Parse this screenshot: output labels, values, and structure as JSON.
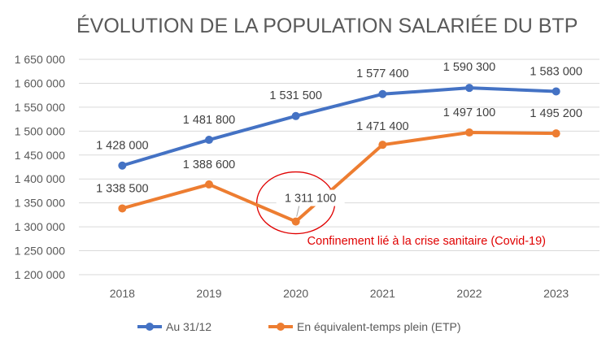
{
  "chart_data": {
    "type": "line",
    "title": "ÉVOLUTION DE LA POPULATION SALARIÉE DU BTP",
    "xlabel": "",
    "ylabel": "",
    "categories": [
      "2018",
      "2019",
      "2020",
      "2021",
      "2022",
      "2023"
    ],
    "ylim": [
      1200000,
      1650000
    ],
    "yticks": [
      1200000,
      1250000,
      1300000,
      1350000,
      1400000,
      1450000,
      1500000,
      1550000,
      1600000,
      1650000
    ],
    "ytick_labels": [
      "1 200 000",
      "1 250 000",
      "1 300 000",
      "1 350 000",
      "1 400 000",
      "1 450 000",
      "1 500 000",
      "1 550 000",
      "1 600 000",
      "1 650 000"
    ],
    "grid": true,
    "legend_position": "bottom",
    "series": [
      {
        "name": "Au 31/12",
        "color": "#4472c4",
        "values": [
          1428000,
          1481800,
          1531500,
          1577400,
          1590300,
          1583000
        ],
        "labels": [
          "1 428 000",
          "1 481 800",
          "1 531 500",
          "1 577 400",
          "1 590 300",
          "1 583 000"
        ]
      },
      {
        "name": "En équivalent-temps plein (ETP)",
        "color": "#ed7d31",
        "values": [
          1338500,
          1388600,
          1311100,
          1471400,
          1497100,
          1495200
        ],
        "labels": [
          "1 338 500",
          "1 388 600",
          "1 311 100",
          "1 471 400",
          "1 497 100",
          "1 495 200"
        ]
      }
    ],
    "annotation": {
      "text": "Confinement lié à la crise sanitaire (Covid-19)",
      "color": "#e00000",
      "category": "2020",
      "series_index": 1
    }
  }
}
